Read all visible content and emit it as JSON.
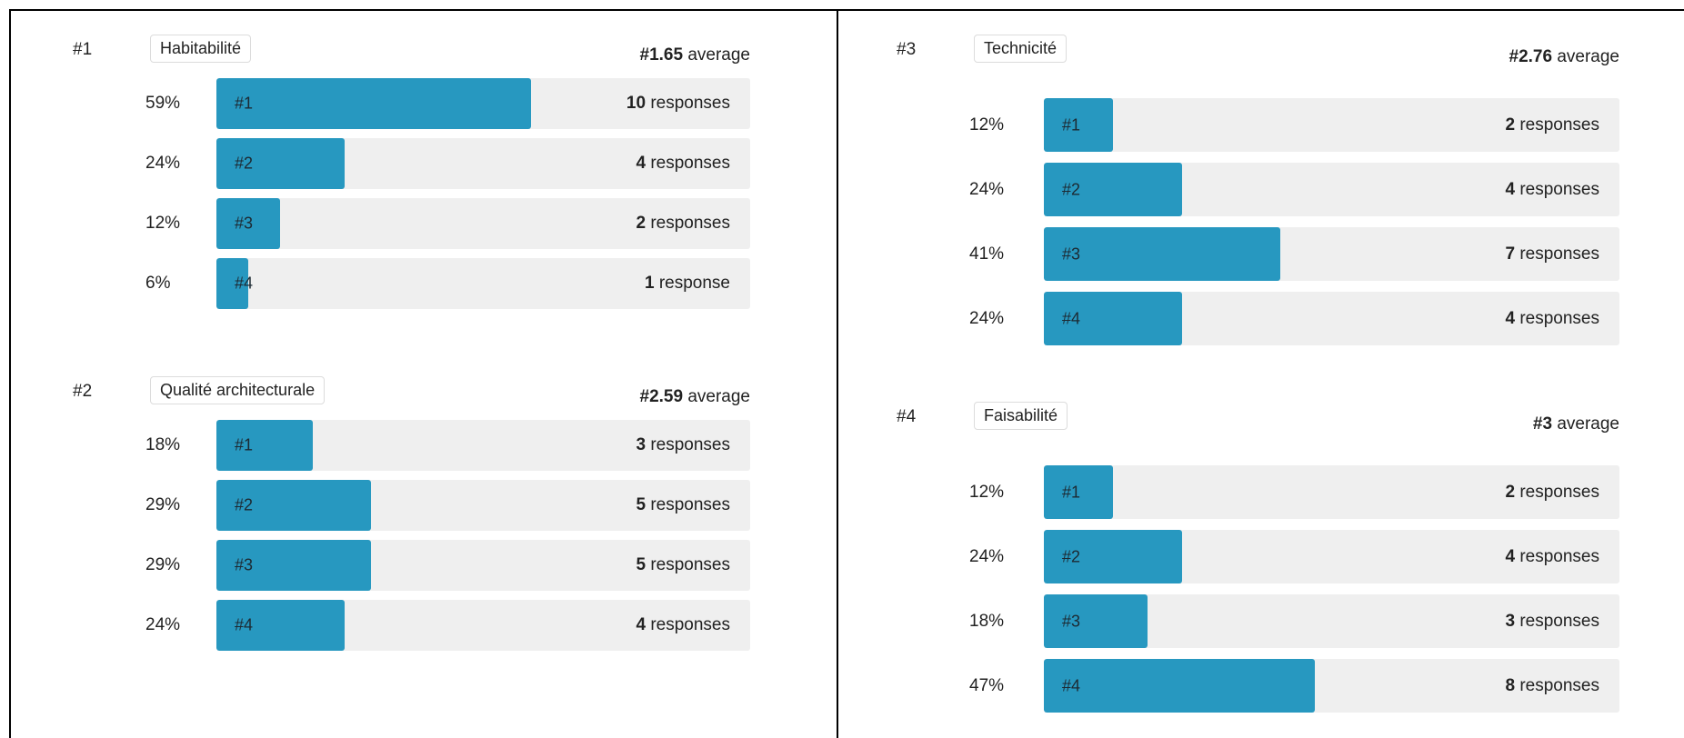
{
  "chart_data": [
    {
      "type": "bar",
      "rank": "#1",
      "title": "Habitabilité",
      "average": "#1.65",
      "average_suffix": "average",
      "categories": [
        "#1",
        "#2",
        "#3",
        "#4"
      ],
      "percent_labels": [
        "59%",
        "24%",
        "12%",
        "6%"
      ],
      "values": [
        59,
        24,
        12,
        6
      ],
      "response_counts": [
        "10",
        "4",
        "2",
        "1"
      ],
      "response_words": [
        "responses",
        "responses",
        "responses",
        "response"
      ]
    },
    {
      "type": "bar",
      "rank": "#2",
      "title": "Qualité architecturale",
      "average": "#2.59",
      "average_suffix": "average",
      "categories": [
        "#1",
        "#2",
        "#3",
        "#4"
      ],
      "percent_labels": [
        "18%",
        "29%",
        "29%",
        "24%"
      ],
      "values": [
        18,
        29,
        29,
        24
      ],
      "response_counts": [
        "3",
        "5",
        "5",
        "4"
      ],
      "response_words": [
        "responses",
        "responses",
        "responses",
        "responses"
      ]
    },
    {
      "type": "bar",
      "rank": "#3",
      "title": "Technicité",
      "average": "#2.76",
      "average_suffix": "average",
      "categories": [
        "#1",
        "#2",
        "#3",
        "#4"
      ],
      "percent_labels": [
        "12%",
        "24%",
        "41%",
        "24%"
      ],
      "values": [
        12,
        24,
        41,
        24
      ],
      "response_counts": [
        "2",
        "4",
        "7",
        "4"
      ],
      "response_words": [
        "responses",
        "responses",
        "responses",
        "responses"
      ]
    },
    {
      "type": "bar",
      "rank": "#4",
      "title": "Faisabilité",
      "average": "#3",
      "average_suffix": "average",
      "categories": [
        "#1",
        "#2",
        "#3",
        "#4"
      ],
      "percent_labels": [
        "12%",
        "24%",
        "18%",
        "47%"
      ],
      "values": [
        12,
        24,
        18,
        47
      ],
      "response_counts": [
        "2",
        "4",
        "3",
        "8"
      ],
      "response_words": [
        "responses",
        "responses",
        "responses",
        "responses"
      ]
    }
  ],
  "colors": {
    "bar": "#2798c0",
    "track": "#efefef"
  }
}
